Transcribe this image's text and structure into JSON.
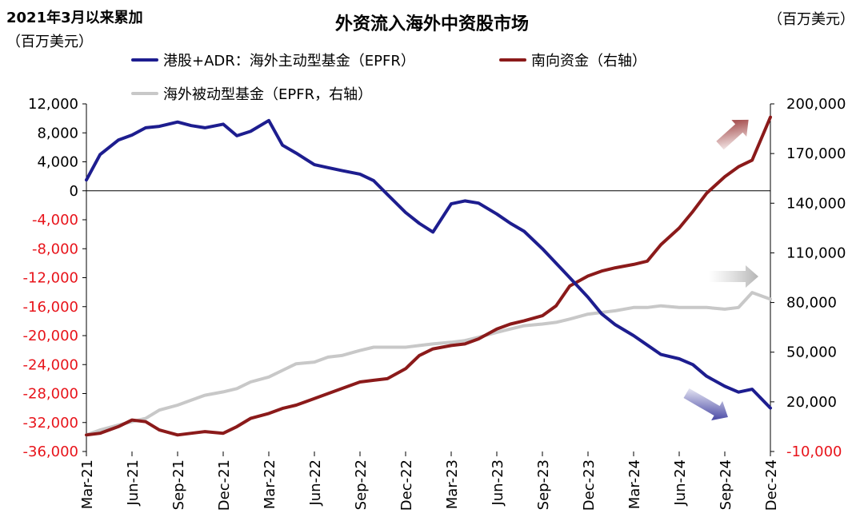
{
  "chart_data": {
    "type": "line",
    "title": "外资流入海外中资股市场",
    "ylabel_left_line1": "2021年3月以来累加",
    "ylabel_left_line2": "（百万美元）",
    "ylabel_right": "（百万美元）",
    "x_tick_labels": [
      "Mar-21",
      "Jun-21",
      "Sep-21",
      "Dec-21",
      "Mar-22",
      "Jun-22",
      "Sep-22",
      "Dec-22",
      "Mar-23",
      "Jun-23",
      "Sep-23",
      "Dec-23",
      "Mar-24",
      "Jun-24",
      "Sep-24",
      "Dec-24"
    ],
    "left_axis": {
      "ylim": [
        -36000,
        12000
      ],
      "ticks": [
        12000,
        8000,
        4000,
        0,
        -4000,
        -8000,
        -12000,
        -16000,
        -20000,
        -24000,
        -28000,
        -32000,
        -36000
      ],
      "tick_labels": [
        "12,000",
        "8,000",
        "4,000",
        "0",
        "-4,000",
        "-8,000",
        "-12,000",
        "-16,000",
        "-20,000",
        "-24,000",
        "-28,000",
        "-32,000",
        "-36,000"
      ],
      "positive_color": "#000000",
      "negative_color": "#e8141b"
    },
    "right_axis": {
      "ylim": [
        -10000,
        200000
      ],
      "ticks": [
        200000,
        170000,
        140000,
        110000,
        80000,
        50000,
        20000,
        -10000
      ],
      "tick_labels": [
        "200,000",
        "170,000",
        "140,000",
        "110,000",
        "80,000",
        "50,000",
        "20,000",
        "-10,000"
      ],
      "positive_color": "#000000",
      "negative_color": "#e8141b"
    },
    "series": [
      {
        "name": "港股+ADR：海外主动型基金（EPFR）",
        "axis": "left",
        "color": "#1d1d8f",
        "x": [
          0,
          0.3,
          0.7,
          1.0,
          1.3,
          1.6,
          2.0,
          2.3,
          2.6,
          3.0,
          3.3,
          3.6,
          4.0,
          4.3,
          4.6,
          5.0,
          5.3,
          5.6,
          6.0,
          6.3,
          6.6,
          7.0,
          7.3,
          7.6,
          8.0,
          8.3,
          8.6,
          9.0,
          9.3,
          9.6,
          10.0,
          10.3,
          10.6,
          11.0,
          11.3,
          11.6,
          12.0,
          12.3,
          12.6,
          13.0,
          13.3,
          13.6,
          14.0,
          14.3,
          14.6,
          15.0
        ],
        "values": [
          1500,
          5000,
          7000,
          7700,
          8700,
          8900,
          9500,
          9000,
          8700,
          9200,
          7600,
          8200,
          9700,
          6300,
          5200,
          3600,
          3200,
          2800,
          2300,
          1400,
          -500,
          -3000,
          -4500,
          -5700,
          -1800,
          -1400,
          -1700,
          -3200,
          -4500,
          -5600,
          -8000,
          -10000,
          -12000,
          -14700,
          -17000,
          -18500,
          -20000,
          -21300,
          -22600,
          -23200,
          -24000,
          -25600,
          -27000,
          -27800,
          -27400,
          -30000
        ]
      },
      {
        "name": "南向资金（右轴）",
        "axis": "right",
        "color": "#8b1a1a",
        "x": [
          0,
          0.3,
          0.7,
          1.0,
          1.3,
          1.6,
          2.0,
          2.3,
          2.6,
          3.0,
          3.3,
          3.6,
          4.0,
          4.3,
          4.6,
          5.0,
          5.3,
          5.6,
          6.0,
          6.3,
          6.6,
          7.0,
          7.3,
          7.6,
          8.0,
          8.3,
          8.6,
          9.0,
          9.3,
          9.6,
          10.0,
          10.3,
          10.6,
          11.0,
          11.3,
          11.6,
          12.0,
          12.3,
          12.6,
          13.0,
          13.3,
          13.6,
          14.0,
          14.3,
          14.6,
          15.0
        ],
        "values": [
          0,
          1000,
          5000,
          9000,
          8000,
          3000,
          0,
          1000,
          2000,
          1000,
          5000,
          10000,
          13000,
          16000,
          18000,
          22000,
          25000,
          28000,
          32000,
          33000,
          34000,
          40000,
          48000,
          52000,
          54000,
          55000,
          58000,
          64000,
          67000,
          69000,
          72000,
          78000,
          90000,
          96000,
          99000,
          101000,
          103000,
          105000,
          115000,
          125000,
          135000,
          146000,
          156000,
          162000,
          166000,
          192000
        ]
      },
      {
        "name": "海外被动型基金（EPFR，右轴）",
        "axis": "right",
        "color": "#c8c8c8",
        "x": [
          0,
          0.3,
          0.7,
          1.0,
          1.3,
          1.6,
          2.0,
          2.3,
          2.6,
          3.0,
          3.3,
          3.6,
          4.0,
          4.3,
          4.6,
          5.0,
          5.3,
          5.6,
          6.0,
          6.3,
          6.6,
          7.0,
          7.3,
          7.6,
          8.0,
          8.3,
          8.6,
          9.0,
          9.3,
          9.6,
          10.0,
          10.3,
          10.6,
          11.0,
          11.3,
          11.6,
          12.0,
          12.3,
          12.6,
          13.0,
          13.3,
          13.6,
          14.0,
          14.3,
          14.6,
          15.0
        ],
        "values": [
          0,
          3000,
          6000,
          8000,
          10000,
          15000,
          18000,
          21000,
          24000,
          26000,
          28000,
          32000,
          35000,
          39000,
          43000,
          44000,
          47000,
          48000,
          51000,
          53000,
          53000,
          53000,
          54000,
          55000,
          56000,
          57000,
          59000,
          62000,
          64000,
          66000,
          67000,
          68000,
          70000,
          73000,
          74000,
          75000,
          77000,
          77000,
          78000,
          77000,
          77000,
          77000,
          76000,
          77000,
          86000,
          82000
        ]
      }
    ],
    "arrows": [
      {
        "series": "南向资金（右轴）",
        "direction": "up"
      },
      {
        "series": "海外被动型基金（EPFR，右轴）",
        "direction": "right"
      },
      {
        "series": "港股+ADR：海外主动型基金（EPFR）",
        "direction": "down"
      }
    ],
    "legend_placement": "top"
  }
}
